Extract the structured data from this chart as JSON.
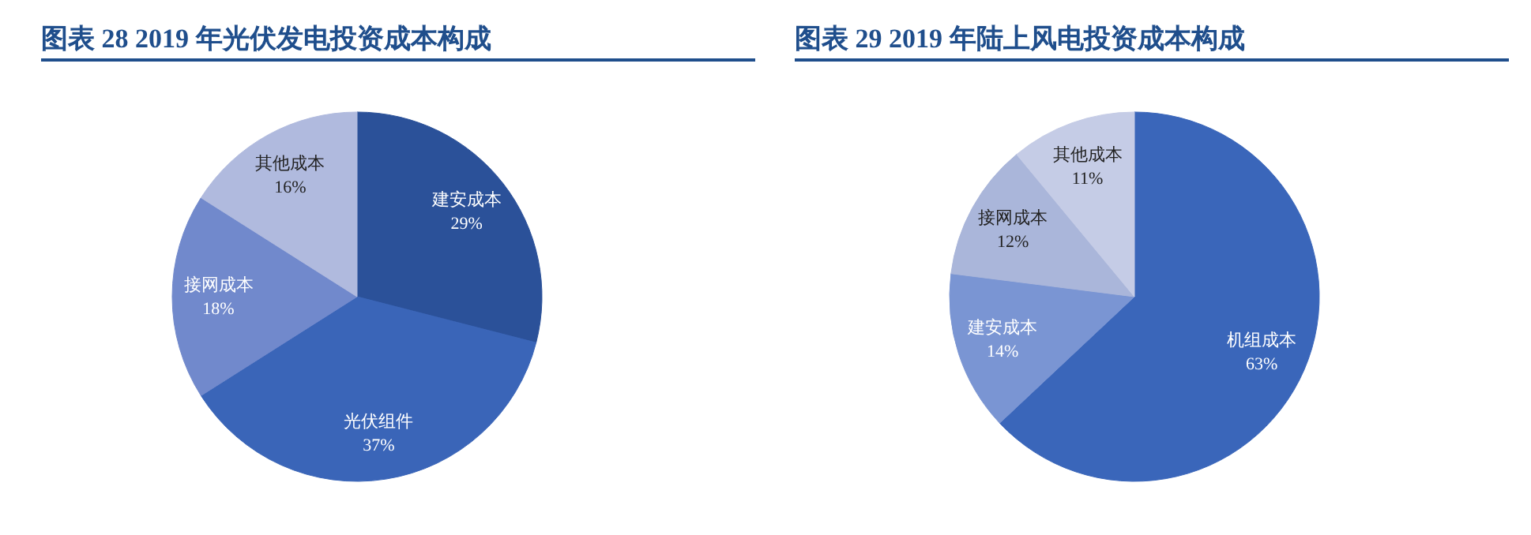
{
  "chart_data": [
    {
      "type": "pie",
      "title": "图表 28  2019 年光伏发电投资成本构成",
      "categories": [
        "建安成本",
        "光伏组件",
        "接网成本",
        "其他成本"
      ],
      "values": [
        29,
        37,
        18,
        16
      ],
      "value_labels": [
        "29%",
        "37%",
        "18%",
        "16%"
      ],
      "colors": [
        "#2b5199",
        "#3a65b8",
        "#7189cc",
        "#b0bade"
      ]
    },
    {
      "type": "pie",
      "title": "图表 29  2019 年陆上风电投资成本构成",
      "categories": [
        "机组成本",
        "建安成本",
        "接网成本",
        "其他成本"
      ],
      "values": [
        63,
        14,
        12,
        11
      ],
      "value_labels": [
        "63%",
        "14%",
        "12%",
        "11%"
      ],
      "colors": [
        "#3a66ba",
        "#7a95d3",
        "#aab6da",
        "#c5cce6"
      ]
    }
  ]
}
